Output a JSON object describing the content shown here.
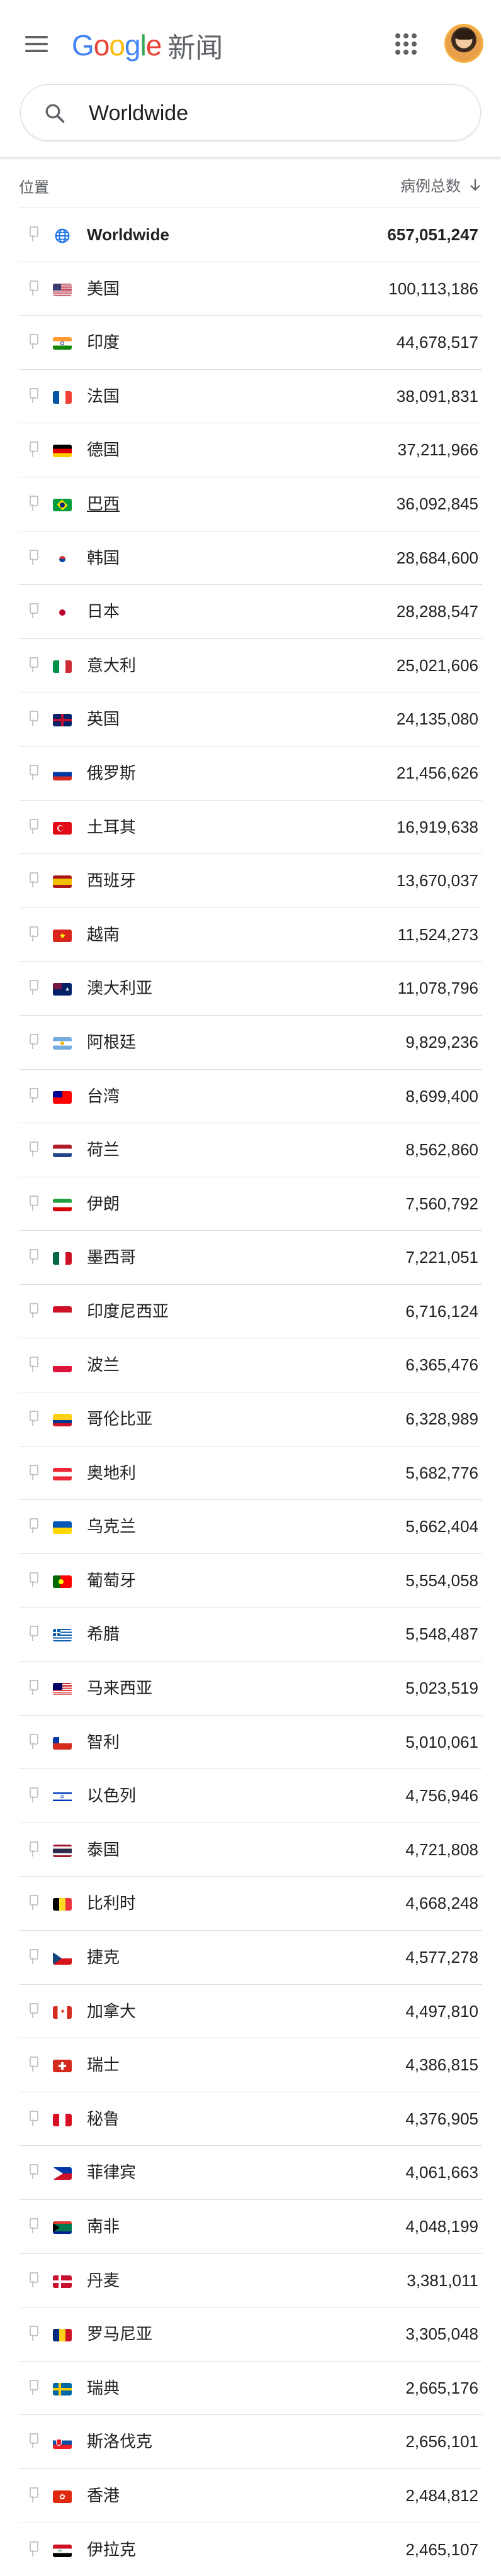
{
  "header": {
    "logo_letters": [
      "G",
      "o",
      "o",
      "g",
      "l",
      "e"
    ],
    "logo_colors": [
      "#4285F4",
      "#EA4335",
      "#FBBC05",
      "#4285F4",
      "#34A853",
      "#EA4335"
    ],
    "app_name": "新闻"
  },
  "search": {
    "value": "Worldwide"
  },
  "table": {
    "col_location": "位置",
    "col_cases": "病例总数",
    "sort_icon": "arrow-down-icon",
    "rows": [
      {
        "name": "Worldwide",
        "count": "657,051,247",
        "flag": "globe",
        "bold": true,
        "link": false
      },
      {
        "name": "美国",
        "count": "100,113,186",
        "flag": "us",
        "bold": false,
        "link": false
      },
      {
        "name": "印度",
        "count": "44,678,517",
        "flag": "in",
        "bold": false,
        "link": false
      },
      {
        "name": "法国",
        "count": "38,091,831",
        "flag": "fr",
        "bold": false,
        "link": false
      },
      {
        "name": "德国",
        "count": "37,211,966",
        "flag": "de",
        "bold": false,
        "link": false
      },
      {
        "name": "巴西",
        "count": "36,092,845",
        "flag": "br",
        "bold": false,
        "link": true
      },
      {
        "name": "韩国",
        "count": "28,684,600",
        "flag": "kr",
        "bold": false,
        "link": false
      },
      {
        "name": "日本",
        "count": "28,288,547",
        "flag": "jp",
        "bold": false,
        "link": false
      },
      {
        "name": "意大利",
        "count": "25,021,606",
        "flag": "it",
        "bold": false,
        "link": false
      },
      {
        "name": "英国",
        "count": "24,135,080",
        "flag": "gb",
        "bold": false,
        "link": false
      },
      {
        "name": "俄罗斯",
        "count": "21,456,626",
        "flag": "ru",
        "bold": false,
        "link": false
      },
      {
        "name": "土耳其",
        "count": "16,919,638",
        "flag": "tr",
        "bold": false,
        "link": false
      },
      {
        "name": "西班牙",
        "count": "13,670,037",
        "flag": "es",
        "bold": false,
        "link": false
      },
      {
        "name": "越南",
        "count": "11,524,273",
        "flag": "vn",
        "bold": false,
        "link": false
      },
      {
        "name": "澳大利亚",
        "count": "11,078,796",
        "flag": "au",
        "bold": false,
        "link": false
      },
      {
        "name": "阿根廷",
        "count": "9,829,236",
        "flag": "ar",
        "bold": false,
        "link": false
      },
      {
        "name": "台湾",
        "count": "8,699,400",
        "flag": "tw",
        "bold": false,
        "link": false
      },
      {
        "name": "荷兰",
        "count": "8,562,860",
        "flag": "nl",
        "bold": false,
        "link": false
      },
      {
        "name": "伊朗",
        "count": "7,560,792",
        "flag": "ir",
        "bold": false,
        "link": false
      },
      {
        "name": "墨西哥",
        "count": "7,221,051",
        "flag": "mx",
        "bold": false,
        "link": false
      },
      {
        "name": "印度尼西亚",
        "count": "6,716,124",
        "flag": "id",
        "bold": false,
        "link": false
      },
      {
        "name": "波兰",
        "count": "6,365,476",
        "flag": "pl",
        "bold": false,
        "link": false
      },
      {
        "name": "哥伦比亚",
        "count": "6,328,989",
        "flag": "co",
        "bold": false,
        "link": false
      },
      {
        "name": "奥地利",
        "count": "5,682,776",
        "flag": "at",
        "bold": false,
        "link": false
      },
      {
        "name": "乌克兰",
        "count": "5,662,404",
        "flag": "ua",
        "bold": false,
        "link": false
      },
      {
        "name": "葡萄牙",
        "count": "5,554,058",
        "flag": "pt",
        "bold": false,
        "link": false
      },
      {
        "name": "希腊",
        "count": "5,548,487",
        "flag": "gr",
        "bold": false,
        "link": false
      },
      {
        "name": "马来西亚",
        "count": "5,023,519",
        "flag": "my",
        "bold": false,
        "link": false
      },
      {
        "name": "智利",
        "count": "5,010,061",
        "flag": "cl",
        "bold": false,
        "link": false
      },
      {
        "name": "以色列",
        "count": "4,756,946",
        "flag": "il",
        "bold": false,
        "link": false
      },
      {
        "name": "泰国",
        "count": "4,721,808",
        "flag": "th",
        "bold": false,
        "link": false
      },
      {
        "name": "比利时",
        "count": "4,668,248",
        "flag": "be",
        "bold": false,
        "link": false
      },
      {
        "name": "捷克",
        "count": "4,577,278",
        "flag": "cz",
        "bold": false,
        "link": false
      },
      {
        "name": "加拿大",
        "count": "4,497,810",
        "flag": "ca",
        "bold": false,
        "link": false
      },
      {
        "name": "瑞士",
        "count": "4,386,815",
        "flag": "ch",
        "bold": false,
        "link": false
      },
      {
        "name": "秘鲁",
        "count": "4,376,905",
        "flag": "pe",
        "bold": false,
        "link": false
      },
      {
        "name": "菲律宾",
        "count": "4,061,663",
        "flag": "ph",
        "bold": false,
        "link": false
      },
      {
        "name": "南非",
        "count": "4,048,199",
        "flag": "za",
        "bold": false,
        "link": false
      },
      {
        "name": "丹麦",
        "count": "3,381,011",
        "flag": "dk",
        "bold": false,
        "link": false
      },
      {
        "name": "罗马尼亚",
        "count": "3,305,048",
        "flag": "ro",
        "bold": false,
        "link": false
      },
      {
        "name": "瑞典",
        "count": "2,665,176",
        "flag": "se",
        "bold": false,
        "link": false
      },
      {
        "name": "斯洛伐克",
        "count": "2,656,101",
        "flag": "sk",
        "bold": false,
        "link": false
      },
      {
        "name": "香港",
        "count": "2,484,812",
        "flag": "hk",
        "bold": false,
        "link": false
      },
      {
        "name": "伊拉克",
        "count": "2,465,107",
        "flag": "iq",
        "bold": false,
        "link": false
      }
    ]
  }
}
